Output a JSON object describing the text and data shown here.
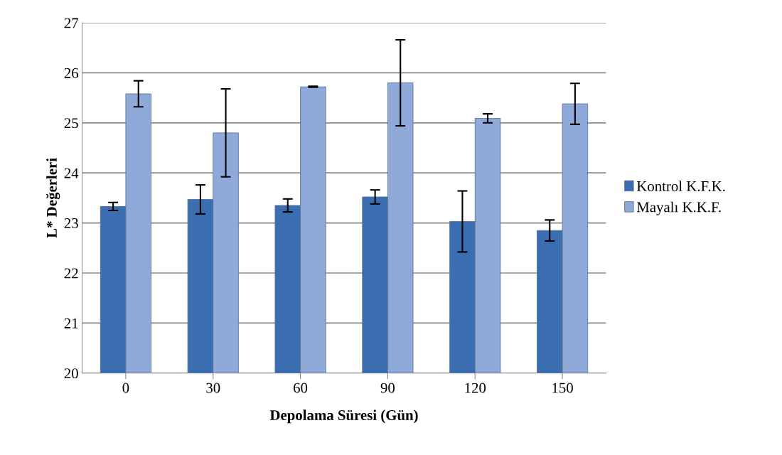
{
  "chart_data": {
    "type": "bar",
    "xlabel": "Depolama Süresi (Gün)",
    "ylabel": "L* Değerleri",
    "categories": [
      "0",
      "30",
      "60",
      "90",
      "120",
      "150"
    ],
    "series": [
      {
        "name": "Kontrol K.F.K.",
        "color": "#3a6eb0",
        "values": [
          23.33,
          23.47,
          23.35,
          23.52,
          23.03,
          22.85
        ],
        "errors": [
          0.08,
          0.29,
          0.13,
          0.14,
          0.61,
          0.21
        ]
      },
      {
        "name": "Mayalı K.K.F.",
        "color": "#8faad8",
        "values": [
          25.58,
          24.8,
          25.72,
          25.8,
          25.09,
          25.38
        ],
        "errors": [
          0.26,
          0.88,
          0.01,
          0.86,
          0.09,
          0.41
        ]
      }
    ],
    "ylim": [
      20,
      27
    ],
    "yticks": [
      20,
      21,
      22,
      23,
      24,
      25,
      26,
      27
    ],
    "grid": "y",
    "legend": "right"
  }
}
